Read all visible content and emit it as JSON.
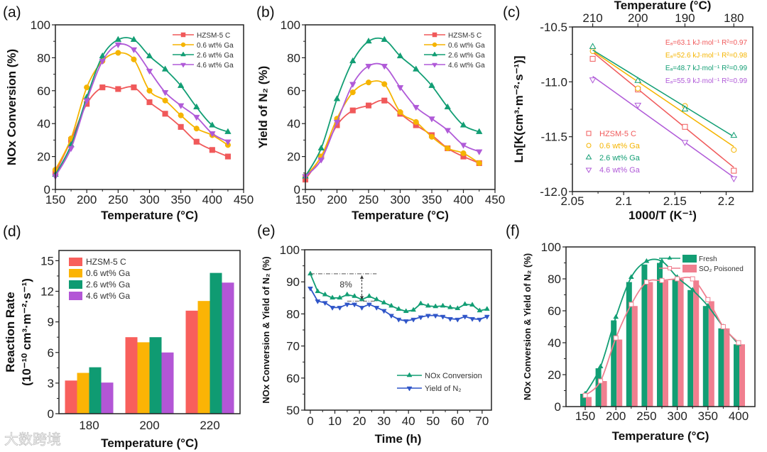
{
  "watermark": "大数跨境",
  "colors": {
    "hzsm": "#f0595a",
    "ga06": "#f5b400",
    "ga26": "#129e74",
    "ga46": "#b05ad8",
    "yield": "#2f55c8",
    "poisoned": "#f07f8f"
  },
  "chart_data": [
    {
      "panel_label": "(a)",
      "type": "line",
      "xlabel": "Temperature (°C)",
      "ylabel": "NOx Conversion (%)",
      "xlim": [
        150,
        450
      ],
      "ylim": [
        0,
        100
      ],
      "xticks": [
        150,
        200,
        250,
        300,
        350,
        400,
        450
      ],
      "yticks": [
        0,
        20,
        40,
        60,
        80,
        100
      ],
      "legend_position": "top-right",
      "x": [
        150,
        175,
        200,
        225,
        250,
        275,
        300,
        325,
        350,
        375,
        400,
        425
      ],
      "series": [
        {
          "name": "HZSM-5 C",
          "color": "#f0595a",
          "marker": "square",
          "values": [
            10,
            30,
            52,
            62,
            61,
            62,
            53,
            46,
            38,
            29,
            24,
            20
          ]
        },
        {
          "name": "0.6 wt% Ga",
          "color": "#f5b400",
          "marker": "circle",
          "values": [
            12,
            31,
            62,
            78,
            83,
            79,
            60,
            54,
            45,
            37,
            33,
            27
          ]
        },
        {
          "name": "2.6 wt% Ga",
          "color": "#129e74",
          "marker": "triangle-up",
          "values": [
            9,
            27,
            56,
            81,
            91,
            91,
            81,
            73,
            63,
            50,
            39,
            35
          ]
        },
        {
          "name": "4.6 wt% Ga",
          "color": "#b05ad8",
          "marker": "triangle-down",
          "values": [
            8,
            25,
            54,
            78,
            88,
            85,
            72,
            59,
            51,
            44,
            34,
            29
          ]
        }
      ]
    },
    {
      "panel_label": "(b)",
      "type": "line",
      "xlabel": "Temperature (°C)",
      "ylabel": "Yield of N₂ (%)",
      "xlim": [
        150,
        450
      ],
      "ylim": [
        0,
        100
      ],
      "xticks": [
        150,
        200,
        250,
        300,
        350,
        400,
        450
      ],
      "yticks": [
        0,
        20,
        40,
        60,
        80,
        100
      ],
      "legend_position": "top-right",
      "x": [
        150,
        175,
        200,
        225,
        250,
        275,
        300,
        325,
        350,
        375,
        400,
        425
      ],
      "series": [
        {
          "name": "HZSM-5 C",
          "color": "#f0595a",
          "marker": "square",
          "values": [
            6,
            20,
            39,
            48,
            51,
            54,
            46,
            39,
            33,
            25,
            20,
            16
          ]
        },
        {
          "name": "0.6 wt% Ga",
          "color": "#f5b400",
          "marker": "circle",
          "values": [
            8,
            20,
            43,
            59,
            65,
            64,
            47,
            41,
            32,
            25,
            22,
            16
          ]
        },
        {
          "name": "2.6 wt% Ga",
          "color": "#129e74",
          "marker": "triangle-up",
          "values": [
            8,
            25,
            55,
            78,
            90,
            91,
            81,
            73,
            63,
            50,
            39,
            35
          ]
        },
        {
          "name": "4.6 wt% Ga",
          "color": "#b05ad8",
          "marker": "triangle-down",
          "values": [
            8,
            18,
            41,
            64,
            75,
            75,
            62,
            50,
            43,
            36,
            27,
            23
          ]
        }
      ]
    },
    {
      "panel_label": "(c)",
      "type": "scatter",
      "xlabel": "1000/T (K⁻¹)",
      "ylabel": "Ln[K(cm³·m⁻²·s⁻¹)]",
      "top_xlabel": "Temperature (°C)",
      "top_xticks": [
        {
          "label": "210",
          "x": 2.0698
        },
        {
          "label": "200",
          "x": 2.1139
        },
        {
          "label": "190",
          "x": 2.1598
        },
        {
          "label": "180",
          "x": 2.2075
        }
      ],
      "xlim": [
        2.05,
        2.226
      ],
      "ylim": [
        -12.0,
        -10.5
      ],
      "xticks": [
        2.05,
        2.1,
        2.15,
        2.2
      ],
      "xtick_labels": [
        "2.05",
        "2.1",
        "2.15",
        "2.2"
      ],
      "yticks": [
        -12.0,
        -11.5,
        -11.0,
        -10.5
      ],
      "ytick_labels": [
        "-12.0",
        "-11.5",
        "-11.0",
        "-10.5"
      ],
      "legend_position": "bottom-left",
      "x": [
        2.0698,
        2.1139,
        2.1598,
        2.2075
      ],
      "series": [
        {
          "name": "HZSM-5 C",
          "color": "#f0595a",
          "marker": "square",
          "values": [
            -10.79,
            -11.07,
            -11.41,
            -11.81
          ],
          "fit": [
            -10.73,
            -11.78
          ],
          "annotation": "Eₐ=63.1 kJ·mol⁻¹  R²=0.97"
        },
        {
          "name": "0.6 wt% Ga",
          "color": "#f5b400",
          "marker": "circle",
          "values": [
            -10.72,
            -11.06,
            -11.22,
            -11.62
          ],
          "fit": [
            -10.72,
            -11.59
          ],
          "annotation": "Eₐ=52.6 kJ·mol⁻¹  R²=0.98"
        },
        {
          "name": "2.6 wt% Ga",
          "color": "#129e74",
          "marker": "triangle-up",
          "values": [
            -10.68,
            -10.99,
            -11.25,
            -11.49
          ],
          "fit": [
            -10.71,
            -11.5
          ],
          "annotation": "Eₐ=48.7 kJ·mol⁻¹  R²=0.99"
        },
        {
          "name": "4.6 wt% Ga",
          "color": "#b05ad8",
          "marker": "triangle-down",
          "values": [
            -10.98,
            -11.21,
            -11.55,
            -11.88
          ],
          "fit": [
            -10.95,
            -11.87
          ],
          "annotation": "Eₐ=55.9 kJ·mol⁻¹  R²=0.99"
        }
      ]
    },
    {
      "panel_label": "(d)",
      "type": "bar",
      "xlabel": "Temperature (°C)",
      "ylabel": "Reaction Rate",
      "ylabel2": "(10⁻¹⁰ cm³·m⁻²·s⁻¹)",
      "categories": [
        "180",
        "200",
        "220"
      ],
      "ylim": [
        0,
        16
      ],
      "yticks": [
        0,
        3,
        6,
        9,
        12,
        15
      ],
      "legend_position": "top-left",
      "series": [
        {
          "name": "HZSM-5 C",
          "color": "#f85f5c",
          "values": [
            3.25,
            7.5,
            10.1
          ]
        },
        {
          "name": "0.6 wt% Ga",
          "color": "#fbb405",
          "values": [
            4.0,
            7.0,
            11.05
          ]
        },
        {
          "name": "2.6 wt% Ga",
          "color": "#0f9b72",
          "values": [
            4.55,
            7.5,
            13.8
          ]
        },
        {
          "name": "4.6 wt% Ga",
          "color": "#b356d6",
          "values": [
            3.05,
            6.0,
            12.85
          ]
        }
      ]
    },
    {
      "panel_label": "(e)",
      "type": "line",
      "xlabel": "Time (h)",
      "ylabel": "NOx Conversion & Yield of N₂ (%)",
      "xlim": [
        -2.3,
        73.8
      ],
      "ylim": [
        50,
        100
      ],
      "xticks": [
        0,
        10,
        20,
        30,
        40,
        50,
        60,
        70
      ],
      "yticks": [
        50,
        60,
        70,
        80,
        90,
        100
      ],
      "legend_position": "bottom-right",
      "annotation": "8%",
      "x": [
        0,
        3,
        6,
        9,
        12,
        15,
        18,
        21,
        24,
        27,
        30,
        33,
        36,
        39,
        42,
        45,
        48,
        51,
        54,
        57,
        60,
        63,
        66,
        69,
        72
      ],
      "series": [
        {
          "name": "NOx Conversion",
          "color": "#129e74",
          "marker": "triangle-up",
          "values": [
            92.5,
            87,
            86,
            85,
            85,
            86,
            85.5,
            84.5,
            85.5,
            84.5,
            83.5,
            82.5,
            81.5,
            80.8,
            81.2,
            83.2,
            82.5,
            82.3,
            82.5,
            82,
            81.7,
            83,
            82.8,
            81,
            81.5
          ]
        },
        {
          "name": "Yield of N₂",
          "color": "#2f55c8",
          "marker": "triangle-down",
          "values": [
            88,
            84,
            83.5,
            82,
            82,
            83,
            83,
            82,
            83,
            82,
            81,
            79.5,
            78.3,
            77.8,
            78.3,
            79,
            79.5,
            79.5,
            79.2,
            78.5,
            78.3,
            79.2,
            78.5,
            78.3,
            79.2
          ]
        }
      ]
    },
    {
      "panel_label": "(f)",
      "type": "bar",
      "xlabel": "Temperature (°C)",
      "ylabel": "NOx Conversion & Yield of N₂ (%)",
      "xlim": [
        118.75,
        426.6
      ],
      "ylim": [
        0,
        100
      ],
      "xticks": [
        150,
        200,
        250,
        300,
        350,
        400
      ],
      "yticks": [
        0,
        20,
        40,
        60,
        80,
        100
      ],
      "legend_position": "top-right",
      "x": [
        150,
        175,
        200,
        225,
        250,
        275,
        300,
        325,
        350,
        375,
        400
      ],
      "series": [
        {
          "name": "Fresh",
          "color": "#129e74",
          "marker": "triangle-up",
          "values": [
            8,
            24,
            54,
            78,
            89,
            90,
            80,
            73,
            63,
            49,
            39
          ],
          "line": [
            8,
            25,
            56,
            81,
            91,
            91,
            81,
            73,
            63,
            50,
            39
          ]
        },
        {
          "name": "SO₂ Poisoned",
          "color": "#f07f8f",
          "marker": "open-square",
          "values": [
            6,
            16,
            42,
            63,
            78,
            79,
            80,
            79,
            66,
            49,
            39
          ],
          "line": [
            7,
            16,
            43,
            64,
            78,
            79,
            80,
            80,
            67,
            50,
            40
          ]
        }
      ]
    }
  ]
}
